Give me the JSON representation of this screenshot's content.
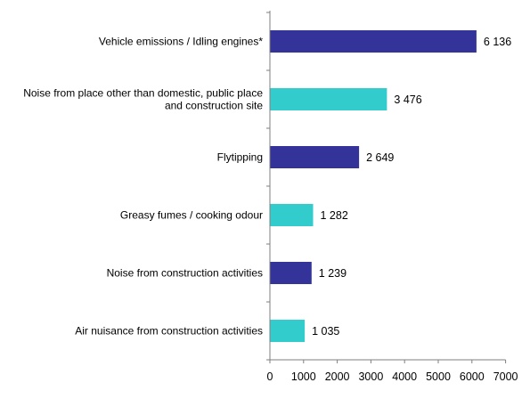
{
  "chart_data": {
    "type": "bar",
    "orientation": "horizontal",
    "categories": [
      [
        "Vehicle emissions / Idling engines*"
      ],
      [
        "Noise from place other than domestic, public place",
        "and construction site"
      ],
      [
        "Flytipping"
      ],
      [
        "Greasy fumes / cooking odour"
      ],
      [
        "Noise from construction activities"
      ],
      [
        "Air nuisance from construction activities"
      ]
    ],
    "values": [
      6136,
      3476,
      2649,
      1282,
      1239,
      1035
    ],
    "value_labels": [
      "6 136",
      "3 476",
      "2 649",
      "1 282",
      "1 239",
      "1 035"
    ],
    "bar_colors": [
      "#333399",
      "#33CCCC",
      "#333399",
      "#33CCCC",
      "#333399",
      "#33CCCC"
    ],
    "xlim": [
      0,
      7000
    ],
    "xticks": [
      0,
      1000,
      2000,
      3000,
      4000,
      5000,
      6000,
      7000
    ],
    "xtick_labels": [
      "0",
      "1000",
      "2000",
      "3000",
      "4000",
      "5000",
      "6000",
      "7000"
    ],
    "title": "",
    "xlabel": "",
    "ylabel": "",
    "grid": false,
    "legend": false
  },
  "colors": {
    "dark_bar": "#333399",
    "light_bar": "#33CCCC",
    "axis": "#7F7F7F"
  }
}
